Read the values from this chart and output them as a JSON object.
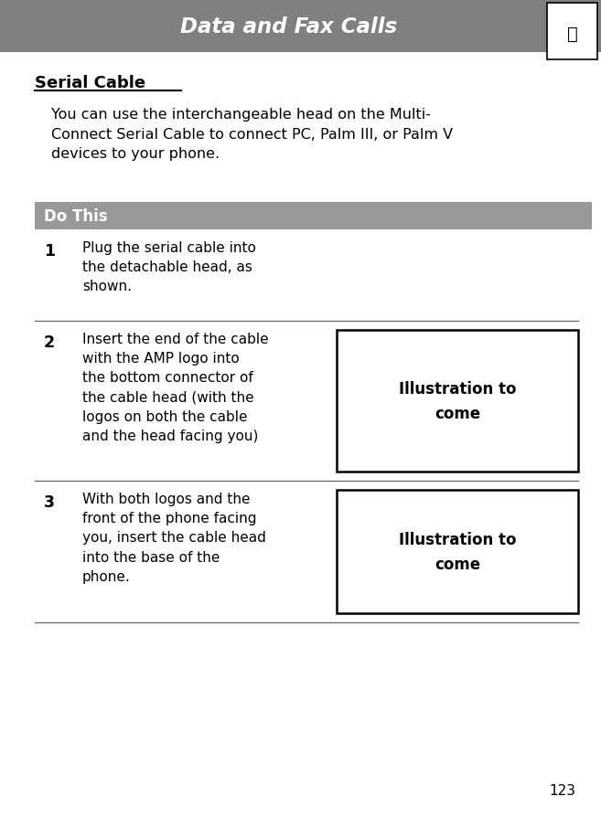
{
  "page_bg": "#ffffff",
  "header_bg": "#808080",
  "header_text": "Data and Fax Calls",
  "header_text_color": "#ffffff",
  "section_title": "Serial Cable",
  "intro_text": "You can use the interchangeable head on the Multi-\nConnect Serial Cable to connect PC, Palm III, or Palm V\ndevices to your phone.",
  "do_this_bg": "#999999",
  "do_this_text": "Do This",
  "do_this_text_color": "#ffffff",
  "steps": [
    {
      "number": "1",
      "text": "Plug the serial cable into\nthe detachable head, as\nshown.",
      "has_illustration": false,
      "illus_row": false
    },
    {
      "number": "2",
      "text": "Insert the end of the cable\nwith the AMP logo into\nthe bottom connector of\nthe cable head (with the\nlogos on both the cable\nand the head facing you)",
      "has_illustration": true,
      "illus_row": true
    },
    {
      "number": "3",
      "text": "With both logos and the\nfront of the phone facing\nyou, insert the cable head\ninto the base of the\nphone.",
      "has_illustration": true,
      "illus_row": true
    }
  ],
  "illustration_text": "Illustration to\ncome",
  "page_number": "123",
  "figsize": [
    6.57,
    8.95
  ],
  "dpi": 100
}
